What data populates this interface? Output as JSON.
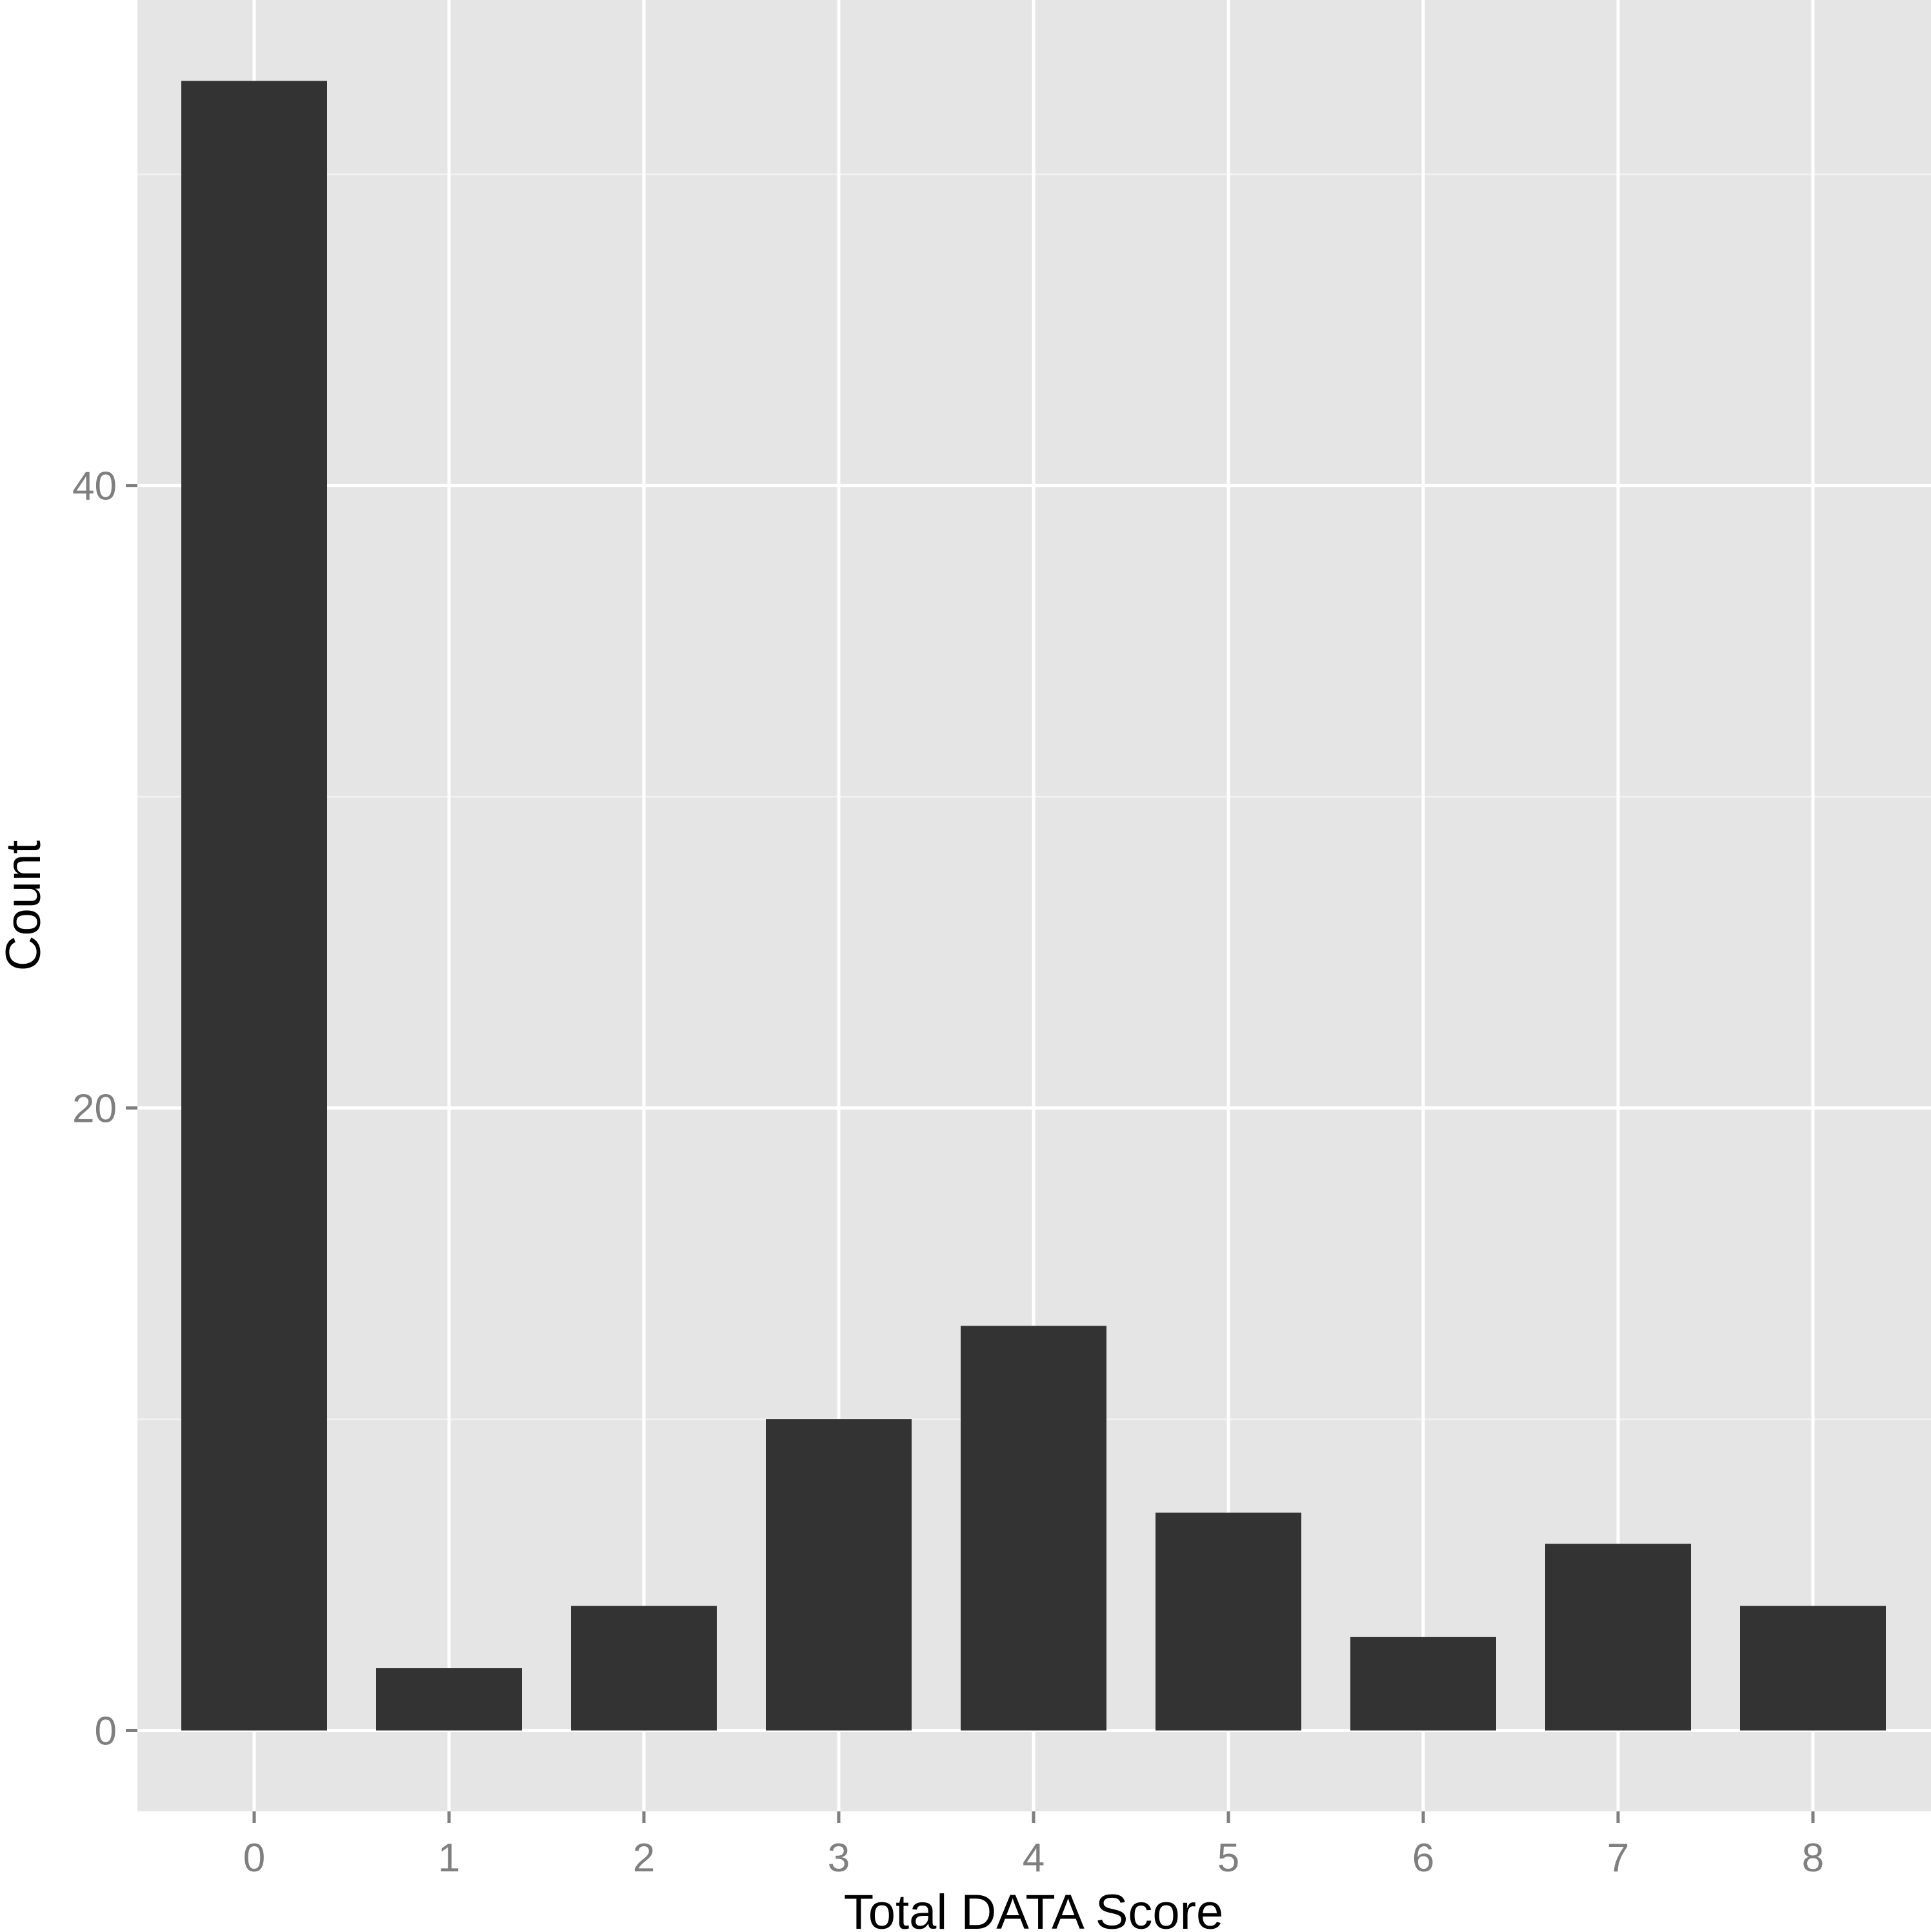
{
  "chart_data": {
    "type": "bar",
    "title": "",
    "xlabel": "Total DATA Score",
    "ylabel": "Count",
    "categories": [
      "0",
      "1",
      "2",
      "3",
      "4",
      "5",
      "6",
      "7",
      "8"
    ],
    "values": [
      53,
      2,
      4,
      10,
      13,
      7,
      3,
      6,
      4
    ],
    "ylim": [
      -2.6,
      55.6
    ],
    "y_ticks": [
      0,
      20,
      40
    ],
    "y_tick_labels": [
      "0",
      "20",
      "40"
    ],
    "y_minor_ticks": [
      10,
      30,
      50
    ],
    "grid": true,
    "legend": "none",
    "colors": {
      "panel_background": "#e5e5e5",
      "grid_major": "#ffffff",
      "grid_minor": "#f2f2f2",
      "bar_fill": "#333333",
      "tick_label": "#7f7f7f",
      "axis_title": "#000000"
    }
  }
}
